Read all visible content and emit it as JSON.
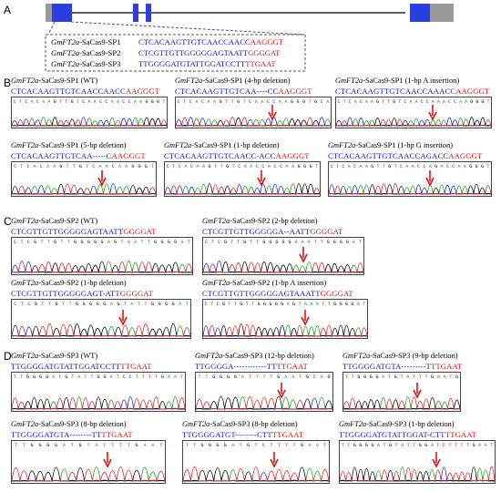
{
  "colors": {
    "target_blue": "#1a1ae6",
    "pam_red": "#e61a1a",
    "trace_A": "#1a9e1a",
    "trace_C": "#1a1ae6",
    "trace_G": "#000000",
    "trace_T": "#e61a1a",
    "exon_blue": "#2a3fe0",
    "utr_gray": "#9a9a9a",
    "arrow_red": "#e01010"
  },
  "panel_labels": {
    "A": "A",
    "B": "B",
    "C": "C",
    "D": "D"
  },
  "panel_a": {
    "targets": [
      {
        "label": "GmFT2a-SaCas9-SP1",
        "gene": "GmFT2a",
        "suffix": "-SaCas9-SP1",
        "target": "CTCACAAGTTGTCAACCAACC",
        "pam": "AAGGGT"
      },
      {
        "label": "GmFT2a-SaCas9-SP2",
        "gene": "GmFT2a",
        "suffix": "-SaCas9-SP2",
        "target": "CTCGTTGTTGGGGGAGTAATT",
        "pam": "GGGGAT"
      },
      {
        "label": "GmFT2a-SaCas9-SP3",
        "gene": "GmFT2a",
        "suffix": "-SaCas9-SP3",
        "target": "TTGGGGATGTATTGGATCCTT",
        "pam": "TTGAAT"
      }
    ]
  },
  "panels": [
    {
      "gene": "GmFT2a",
      "site": "-SaCas9-SP1",
      "note": "(WT)",
      "target": "CTCACAAGTTGTCAACCAACC",
      "pam": "AAGGGT",
      "bases": "CTCACAAGTTGTCAACCAACCAAGGGT",
      "arrow": false
    },
    {
      "gene": "GmFT2a",
      "site": "-SaCas9-SP1",
      "note": "(4-bp deletion)",
      "target": "CTCACAAGTTGTCAA----CC",
      "pam": "AAGGGT",
      "bases": "CTCACAAGTTGTCAACCAAGGGTGCA",
      "arrow": true
    },
    {
      "gene": "GmFT2a",
      "site": "-SaCas9-SP1",
      "note": "(1-bp A insertion)",
      "target": "CTCACAAGTTGTCAACCAAACC",
      "pam": "AAGGGT",
      "bases": "CTCACAAGTTGTCAACCAAACCAAGGGT",
      "arrow": true
    },
    {
      "gene": "GmFT2a",
      "site": "-SaCas9-SP1",
      "note": "(5-bp deletion)",
      "target": "CTCACAAGTTGTCAA-----C",
      "pam": "AAGGGT",
      "bases": "CTCACAAGTTGTCAACAAGGGT",
      "arrow": true
    },
    {
      "gene": "GmFT2a",
      "site": "-SaCas9-SP1",
      "note": "(1-bp deletion)",
      "target": "CTCACAAGTTGTCAACC-ACC",
      "pam": "AAGGGT",
      "bases": "CTCACAAGTTGTCAACCACCAAGGGT",
      "arrow": true
    },
    {
      "gene": "GmFT2a",
      "site": "-SaCas9-SP1",
      "note": "(1-bp G insertion)",
      "target": "CTCACAAGTTGTCAACCAGACC",
      "pam": "AAGGGT",
      "bases": "CTCACAAGTTGTCAACCAGACCAAGGGT",
      "arrow": true
    },
    {
      "gene": "GmFT2a",
      "site": "-SaCas9-SP2",
      "note": "(WT)",
      "target": "CTCGTTGTTGGGGGAGTAATT",
      "pam": "GGGGAT",
      "bases": "CTCGTTGTTGGGGGAGTAATTGGGGAT",
      "arrow": false
    },
    {
      "gene": "GmFT2a",
      "site": "-SaCas9-SP2",
      "note": "(2-bp deletion)",
      "target": "CTCGTTGTTGGGGGA--AATT",
      "pam": "GGGGAT",
      "bases": "CTCGTTGTTGGGGGAAATTGGGGAT",
      "arrow": true
    },
    {
      "gene": "GmFT2a",
      "site": "-SaCas9-SP2",
      "note": "(1-bp deletion)",
      "target": "CTCGTTGTTGGGGGAGT-ATT",
      "pam": "GGGGAT",
      "bases": "CTCGTTGTTGGGGGAGTATTGGGGAT",
      "arrow": true
    },
    {
      "gene": "GmFT2a",
      "site": "-SaCas9-SP2",
      "note": "(1-bp A insertion)",
      "target": "CTCGTTGTTGGGGGAGTAAATT",
      "pam": "GGGGAT",
      "bases": "CTCGTTGTTGGGGGAGTAAATTGGGGAT",
      "arrow": true
    },
    {
      "gene": "GmFT2a",
      "site": "-SaCas9-SP3",
      "note": "(WT)",
      "target": "TTGGGGATGTATTGGATCCTT",
      "pam": "TTGAAT",
      "bases": "TTGGGGATGTATTGGATCCTTTTGAAT",
      "arrow": false
    },
    {
      "gene": "GmFT2a",
      "site": "-SaCas9-SP3",
      "note": "(12-bp deletion)",
      "target": "TTGGGGA------------TT",
      "pam": "TTGAAT",
      "bases": "TTGGGGATTTTGAATGCAG",
      "arrow": true
    },
    {
      "gene": "GmFT2a",
      "site": "-SaCas9-SP3",
      "note": "(9-bp deletion)",
      "target": "TTGGGGATGTA---------T",
      "pam": "TTGAAT",
      "bases": "TTGGGGATGTATTTGAATG",
      "arrow": true
    },
    {
      "gene": "GmFT2a",
      "site": "-SaCas9-SP3",
      "note": "(8-bp deletion)",
      "target": "TTGGGGATGTA--------TT",
      "pam": "TTGAAT",
      "bases": "TTGGGGATGTATTTTGAAT",
      "arrow": true
    },
    {
      "gene": "GmFT2a",
      "site": "-SaCas9-SP3",
      "note": "(8-bp deletion)",
      "target": "TTGGGGATGT--------CTT",
      "pam": "TTGAAT",
      "bases": "TTGGGGATGTCTTTTGAAT",
      "arrow": true
    },
    {
      "gene": "GmFT2a",
      "site": "-SaCas9-SP3",
      "note": "(1-bp deletion)",
      "target": "TTGGGGATGTATTGGAT-CTT",
      "pam": "TTGAAT",
      "bases": "TTGGGGATGTATTGGATCTTTTGAAT",
      "arrow": true
    }
  ]
}
